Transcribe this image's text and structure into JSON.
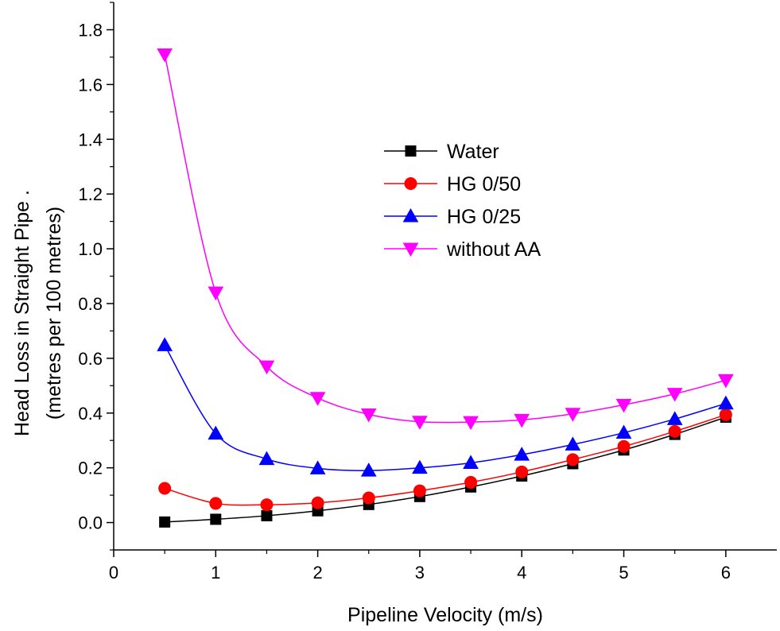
{
  "chart_data": {
    "type": "line",
    "title": "",
    "xlabel": "Pipeline Velocity (m/s)",
    "ylabel_line1": "Head Loss  in Straight Pipe .",
    "ylabel_line2": "(metres per 100 metres)",
    "xlim": [
      0,
      6.5
    ],
    "ylim": [
      -0.1,
      1.9
    ],
    "xticks": [
      0,
      1,
      2,
      3,
      4,
      5,
      6
    ],
    "xtick_labels": [
      "0",
      "1",
      "2",
      "3",
      "4",
      "5",
      "6"
    ],
    "yticks": [
      0.0,
      0.2,
      0.4,
      0.6,
      0.8,
      1.0,
      1.2,
      1.4,
      1.6,
      1.8
    ],
    "ytick_labels": [
      "0.0",
      "0.2",
      "0.4",
      "0.6",
      "0.8",
      "1.0",
      "1.2",
      "1.4",
      "1.6",
      "1.8"
    ],
    "grid": false,
    "legend_position": "upper-middle",
    "x": [
      0.5,
      1.0,
      1.5,
      2.0,
      2.5,
      3.0,
      3.5,
      4.0,
      4.5,
      5.0,
      5.5,
      6.0
    ],
    "series": [
      {
        "name": "Water",
        "color": "#000000",
        "marker": "square",
        "values": [
          0.002,
          0.012,
          0.025,
          0.043,
          0.066,
          0.095,
          0.13,
          0.17,
          0.215,
          0.265,
          0.322,
          0.385
        ]
      },
      {
        "name": "HG 0/50",
        "color": "#ff0000",
        "marker": "circle",
        "values": [
          0.125,
          0.07,
          0.065,
          0.072,
          0.09,
          0.116,
          0.147,
          0.185,
          0.23,
          0.278,
          0.333,
          0.394
        ]
      },
      {
        "name": "HG 0/25",
        "color": "#0000ff",
        "marker": "triangle-up",
        "values": [
          0.648,
          0.325,
          0.232,
          0.198,
          0.19,
          0.2,
          0.218,
          0.248,
          0.285,
          0.328,
          0.378,
          0.435
        ]
      },
      {
        "name": "without AA",
        "color": "#ff00ff",
        "marker": "triangle-down",
        "values": [
          1.71,
          0.84,
          0.57,
          0.455,
          0.395,
          0.368,
          0.367,
          0.375,
          0.397,
          0.43,
          0.47,
          0.52
        ]
      }
    ]
  }
}
